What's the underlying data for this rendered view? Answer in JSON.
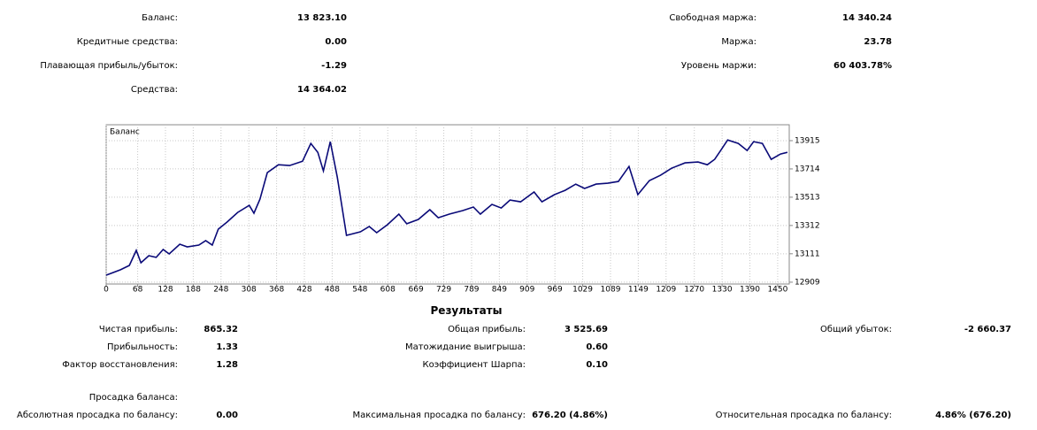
{
  "summary": {
    "left": [
      {
        "label": "Баланс:",
        "value": "13 823.10"
      },
      {
        "label": "Кредитные средства:",
        "value": "0.00"
      },
      {
        "label": "Плавающая прибыль/убыток:",
        "value": "-1.29"
      },
      {
        "label": "Средства:",
        "value": "14 364.02"
      }
    ],
    "right": [
      {
        "label": "Свободная маржа:",
        "value": "14 340.24"
      },
      {
        "label": "Маржа:",
        "value": "23.78"
      },
      {
        "label": "Уровень маржи:",
        "value": "60 403.78%"
      }
    ]
  },
  "chart_data": {
    "type": "line",
    "title": "Баланс",
    "x": [
      0,
      31,
      50,
      65,
      75,
      92,
      108,
      123,
      136,
      159,
      175,
      200,
      215,
      229,
      242,
      261,
      284,
      309,
      319,
      332,
      348,
      372,
      396,
      424,
      442,
      457,
      469,
      484,
      499,
      519,
      549,
      568,
      584,
      607,
      632,
      649,
      674,
      699,
      717,
      741,
      770,
      793,
      808,
      833,
      853,
      872,
      895,
      924,
      941,
      968,
      991,
      1014,
      1033,
      1058,
      1083,
      1106,
      1129,
      1148,
      1173,
      1197,
      1221,
      1250,
      1278,
      1298,
      1314,
      1327,
      1342,
      1365,
      1384,
      1398,
      1417,
      1436,
      1456,
      1471
    ],
    "series": [
      {
        "name": "Баланс",
        "color": "#0a0a78",
        "values": [
          12959,
          12997,
          13028,
          13135,
          13047,
          13097,
          13085,
          13141,
          13110,
          13179,
          13160,
          13173,
          13204,
          13173,
          13286,
          13336,
          13405,
          13455,
          13399,
          13499,
          13688,
          13744,
          13738,
          13769,
          13895,
          13832,
          13700,
          13908,
          13656,
          13242,
          13267,
          13305,
          13261,
          13317,
          13393,
          13324,
          13355,
          13424,
          13367,
          13393,
          13418,
          13443,
          13393,
          13462,
          13436,
          13493,
          13480,
          13550,
          13480,
          13531,
          13562,
          13606,
          13575,
          13606,
          13612,
          13625,
          13732,
          13531,
          13631,
          13669,
          13719,
          13757,
          13763,
          13744,
          13782,
          13845,
          13920,
          13895,
          13845,
          13908,
          13895,
          13782,
          13820,
          13832
        ]
      }
    ],
    "xlim": [
      0,
      1475
    ],
    "xticks": [
      0,
      68,
      128,
      188,
      248,
      308,
      368,
      428,
      488,
      548,
      608,
      669,
      729,
      789,
      849,
      909,
      969,
      1029,
      1089,
      1149,
      1209,
      1270,
      1330,
      1390,
      1450
    ],
    "ylim": [
      12896,
      14028
    ],
    "yticks": [
      12909,
      13111,
      13312,
      13513,
      13714,
      13915
    ],
    "grid": true
  },
  "results": {
    "title": "Результаты",
    "rows": [
      [
        {
          "label": "Чистая прибыль:",
          "value": "865.32"
        },
        {
          "label": "Общая прибыль:",
          "value": "3 525.69"
        },
        {
          "label": "Общий убыток:",
          "value": "-2 660.37"
        }
      ],
      [
        {
          "label": "Прибыльность:",
          "value": "1.33"
        },
        {
          "label": "Матожидание выигрыша:",
          "value": "0.60"
        }
      ],
      [
        {
          "label": "Фактор восстановления:",
          "value": "1.28"
        },
        {
          "label": "Коэффициент Шарпа:",
          "value": "0.10"
        }
      ]
    ],
    "drawdown_title": "Просадка баланса:",
    "drawdown": [
      {
        "label": "Абсолютная просадка по балансу:",
        "value": "0.00"
      },
      {
        "label": "Максимальная просадка по балансу:",
        "value": "676.20 (4.86%)"
      },
      {
        "label": "Относительная просадка по балансу:",
        "value": "4.86% (676.20)"
      }
    ]
  }
}
